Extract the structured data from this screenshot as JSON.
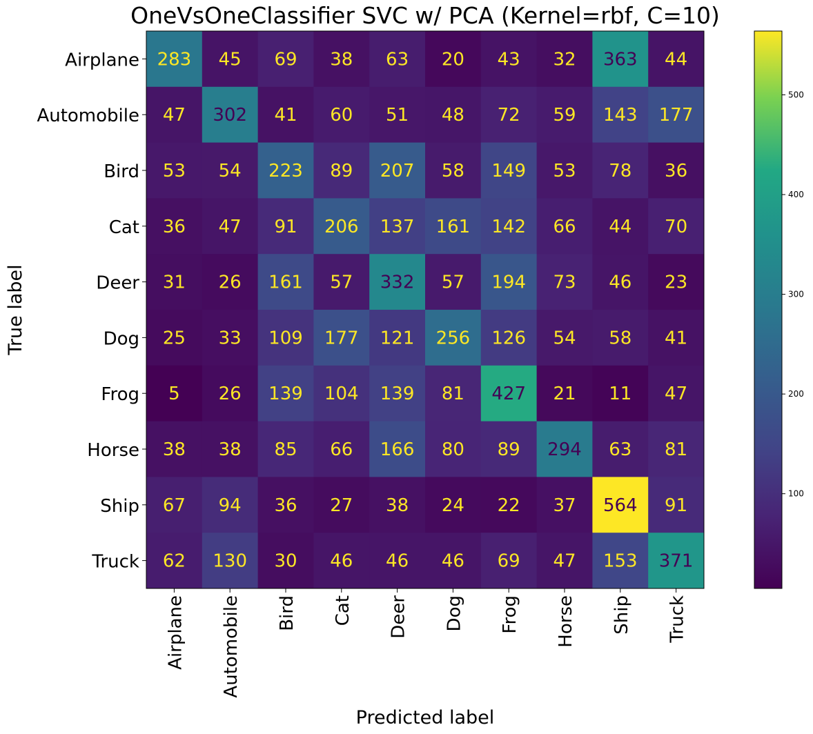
{
  "chart_data": {
    "type": "heatmap",
    "title": "OneVsOneClassifier SVC w/ PCA (Kernel=rbf, C=10)",
    "xlabel": "Predicted label",
    "ylabel": "True label",
    "x_categories": [
      "Airplane",
      "Automobile",
      "Bird",
      "Cat",
      "Deer",
      "Dog",
      "Frog",
      "Horse",
      "Ship",
      "Truck"
    ],
    "y_categories": [
      "Airplane",
      "Automobile",
      "Bird",
      "Cat",
      "Deer",
      "Dog",
      "Frog",
      "Horse",
      "Ship",
      "Truck"
    ],
    "values": [
      [
        283,
        45,
        69,
        38,
        63,
        20,
        43,
        32,
        363,
        44
      ],
      [
        47,
        302,
        41,
        60,
        51,
        48,
        72,
        59,
        143,
        177
      ],
      [
        53,
        54,
        223,
        89,
        207,
        58,
        149,
        53,
        78,
        36
      ],
      [
        36,
        47,
        91,
        206,
        137,
        161,
        142,
        66,
        44,
        70
      ],
      [
        31,
        26,
        161,
        57,
        332,
        57,
        194,
        73,
        46,
        23
      ],
      [
        25,
        33,
        109,
        177,
        121,
        256,
        126,
        54,
        58,
        41
      ],
      [
        5,
        26,
        139,
        104,
        139,
        81,
        427,
        21,
        11,
        47
      ],
      [
        38,
        38,
        85,
        66,
        166,
        80,
        89,
        294,
        63,
        81
      ],
      [
        67,
        94,
        36,
        27,
        38,
        24,
        22,
        37,
        564,
        91
      ],
      [
        62,
        130,
        30,
        46,
        46,
        46,
        69,
        47,
        153,
        371
      ]
    ],
    "colormap": "viridis",
    "vmin": 5,
    "vmax": 564,
    "colorbar_ticks": [
      100,
      200,
      300,
      400,
      500
    ],
    "text_color_light": "#fde725",
    "text_color_dark": "#440154",
    "grid": false
  }
}
